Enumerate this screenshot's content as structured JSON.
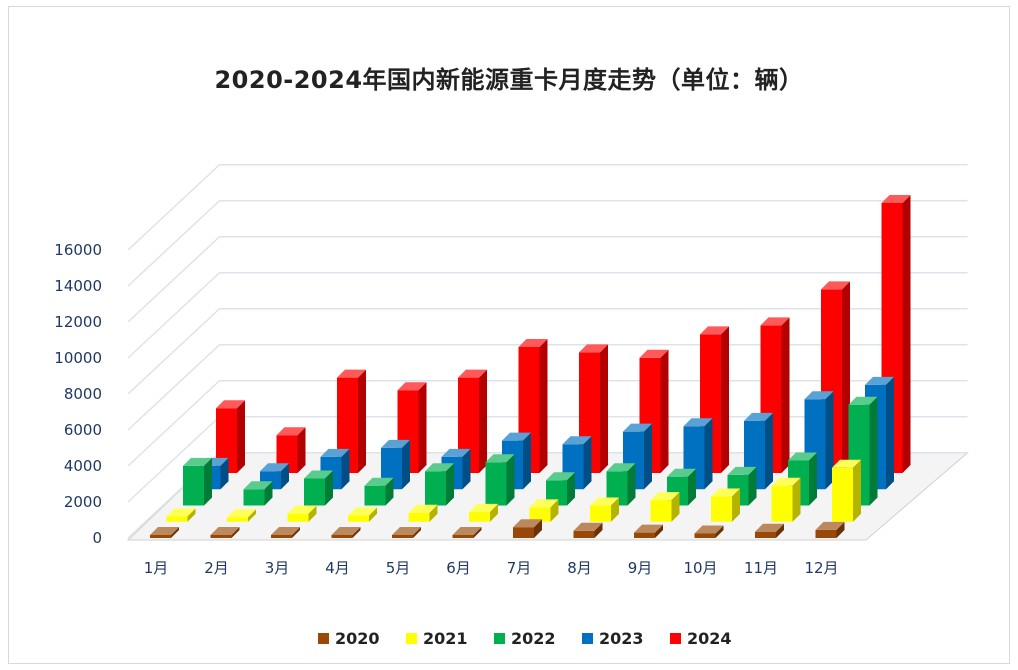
{
  "chart_data": {
    "type": "bar",
    "title": "2020-2024年国内新能源重卡月度走势（单位：辆）",
    "categories": [
      "1月",
      "2月",
      "3月",
      "4月",
      "5月",
      "6月",
      "7月",
      "8月",
      "9月",
      "10月",
      "11月",
      "12月"
    ],
    "ylim": [
      0,
      16000
    ],
    "yticks": [
      "0",
      "2000",
      "4000",
      "6000",
      "8000",
      "10000",
      "12000",
      "14000",
      "16000"
    ],
    "grid": true,
    "legend_position": "bottom",
    "series": [
      {
        "name": "2020",
        "color": "#984807",
        "values": [
          150,
          100,
          150,
          150,
          150,
          150,
          600,
          400,
          300,
          250,
          350,
          450
        ]
      },
      {
        "name": "2021",
        "color": "#ffff00",
        "values": [
          300,
          250,
          450,
          350,
          500,
          550,
          800,
          900,
          1200,
          1400,
          2000,
          3000
        ]
      },
      {
        "name": "2022",
        "color": "#00b050",
        "values": [
          2200,
          900,
          1500,
          1100,
          1900,
          2400,
          1400,
          1900,
          1600,
          1700,
          2500,
          5600
        ]
      },
      {
        "name": "2023",
        "color": "#0070c0",
        "values": [
          1300,
          1000,
          1800,
          2300,
          1800,
          2700,
          2500,
          3200,
          3500,
          3800,
          5000,
          5800
        ]
      },
      {
        "name": "2024",
        "color": "#ff0000",
        "values": [
          3600,
          2100,
          5300,
          4600,
          5300,
          7000,
          6700,
          6400,
          7700,
          8200,
          10200,
          15000
        ]
      }
    ]
  }
}
